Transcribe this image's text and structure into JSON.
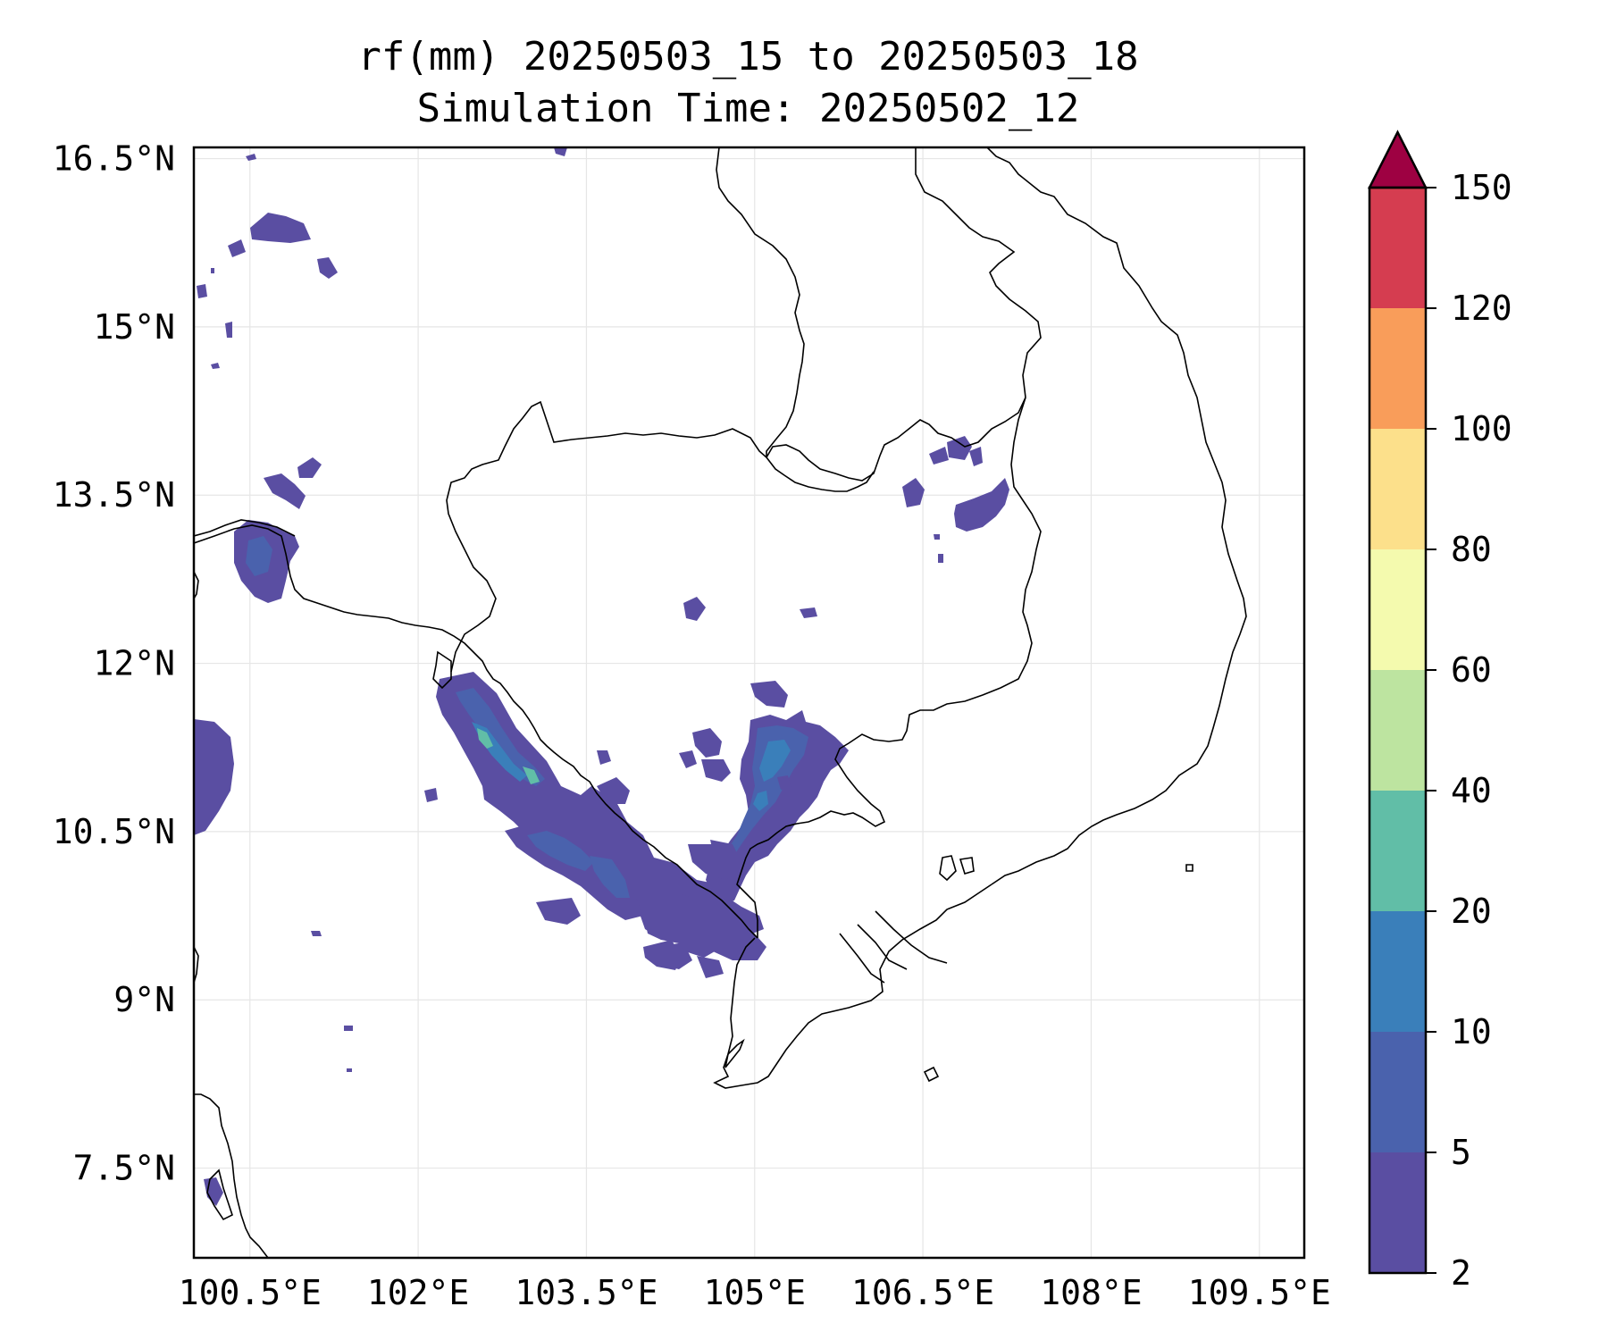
{
  "title": "rf(mm) 20250503_15 to 20250503_18",
  "subtitle": "Simulation Time: 20250502_12",
  "map": {
    "lon_range": [
      100.0,
      109.9
    ],
    "lat_range": [
      6.7,
      16.6
    ],
    "lon_ticks": [
      {
        "value": 100.5,
        "label": "100.5°E"
      },
      {
        "value": 102.0,
        "label": "102°E"
      },
      {
        "value": 103.5,
        "label": "103.5°E"
      },
      {
        "value": 105.0,
        "label": "105°E"
      },
      {
        "value": 106.5,
        "label": "106.5°E"
      },
      {
        "value": 108.0,
        "label": "108°E"
      },
      {
        "value": 109.5,
        "label": "109.5°E"
      }
    ],
    "lat_ticks": [
      {
        "value": 16.5,
        "label": "16.5°N"
      },
      {
        "value": 15.0,
        "label": "15°N"
      },
      {
        "value": 13.5,
        "label": "13.5°N"
      },
      {
        "value": 12.0,
        "label": "12°N"
      },
      {
        "value": 10.5,
        "label": "10.5°N"
      },
      {
        "value": 9.0,
        "label": "9°N"
      },
      {
        "value": 7.5,
        "label": "7.5°N"
      }
    ],
    "gridlines": true
  },
  "colorbar": {
    "levels": [
      {
        "label": "2",
        "color": "#5a4ea2"
      },
      {
        "label": "5",
        "color": "#4a62ad"
      },
      {
        "label": "10",
        "color": "#3a7fba"
      },
      {
        "label": "20",
        "color": "#61bea7"
      },
      {
        "label": "40",
        "color": "#bde4a0"
      },
      {
        "label": "60",
        "color": "#f4faae"
      },
      {
        "label": "80",
        "color": "#fce08b"
      },
      {
        "label": "100",
        "color": "#f99d5a"
      },
      {
        "label": "120",
        "color": "#d53d50"
      },
      {
        "label": "150",
        "color": "#9e0142"
      }
    ],
    "extend": "max"
  },
  "colors": {
    "coastline": "#000000",
    "grid": "#e6e6e6"
  }
}
